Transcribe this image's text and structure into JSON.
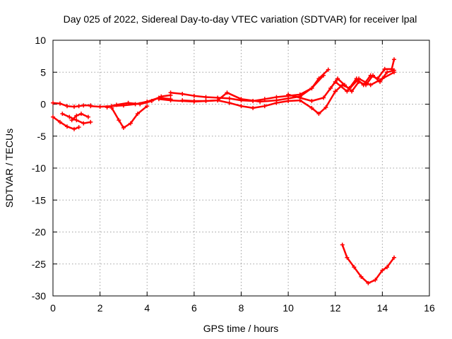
{
  "chart_data": {
    "type": "scatter",
    "title": "Day 025 of 2022, Sidereal Day-to-day VTEC variation (SDTVAR) for receiver lpal",
    "xlabel": "GPS time / hours",
    "ylabel": "SDTVAR / TECUs",
    "xlim": [
      0,
      16
    ],
    "ylim": [
      -30,
      10
    ],
    "xticks": [
      0,
      2,
      4,
      6,
      8,
      10,
      12,
      14,
      16
    ],
    "yticks": [
      -30,
      -25,
      -20,
      -15,
      -10,
      -5,
      0,
      5,
      10
    ],
    "grid": true,
    "marker_color": "#ff0000",
    "series": [
      {
        "x": [
          0,
          0.3,
          0.6,
          0.9,
          1.1,
          1.3,
          1.6
        ],
        "y": [
          0.2,
          0.1,
          -0.3,
          -0.4,
          -0.3,
          -0.2,
          -0.2
        ]
      },
      {
        "x": [
          0,
          0.3,
          0.6,
          0.9,
          1.1
        ],
        "y": [
          -2.0,
          -2.8,
          -3.5,
          -3.9,
          -3.6
        ]
      },
      {
        "x": [
          0.4,
          0.7,
          1.0,
          1.3,
          1.6
        ],
        "y": [
          -1.5,
          -2.0,
          -2.5,
          -3.0,
          -2.8
        ]
      },
      {
        "x": [
          0.8,
          1.0,
          1.2,
          1.5
        ],
        "y": [
          -2.5,
          -1.8,
          -1.5,
          -2.0
        ]
      },
      {
        "x": [
          1.6,
          2.0,
          2.5,
          3.0,
          3.5,
          4.0,
          4.5,
          5.0
        ],
        "y": [
          -0.3,
          -0.4,
          -0.3,
          -0.2,
          0.0,
          0.4,
          1.0,
          0.8
        ]
      },
      {
        "x": [
          2.5,
          2.8,
          3.0,
          3.3,
          3.6,
          4.0
        ],
        "y": [
          -0.6,
          -2.5,
          -3.7,
          -3.0,
          -1.5,
          -0.3
        ]
      },
      {
        "x": [
          2.3,
          2.7,
          3.2,
          3.7,
          4.2,
          4.6,
          5.0
        ],
        "y": [
          -0.5,
          -0.1,
          0.2,
          0.0,
          0.5,
          1.2,
          1.4
        ]
      },
      {
        "x": [
          5.0,
          5.5,
          6.0,
          6.5,
          7.0,
          7.5,
          8.0,
          8.5,
          9.0,
          9.5,
          10.0,
          10.5,
          11.0,
          11.5
        ],
        "y": [
          1.8,
          1.6,
          1.3,
          1.1,
          1.0,
          0.9,
          0.6,
          0.5,
          0.8,
          1.1,
          1.3,
          1.5,
          2.5,
          4.5
        ]
      },
      {
        "x": [
          4.5,
          5.0,
          6.0,
          7.0,
          7.4,
          8.0,
          8.8,
          9.5,
          10.0,
          10.5,
          11.0,
          11.3,
          11.7
        ],
        "y": [
          0.8,
          0.6,
          0.4,
          0.6,
          1.8,
          0.8,
          0.4,
          0.6,
          0.9,
          1.2,
          2.5,
          4.0,
          5.4
        ]
      },
      {
        "x": [
          5.5,
          6.0,
          6.5,
          7.0,
          7.5,
          8.0,
          8.5,
          9.0,
          9.5,
          10.0,
          10.5,
          11.0,
          11.3,
          11.6,
          12.0
        ],
        "y": [
          0.6,
          0.5,
          0.5,
          0.6,
          0.2,
          -0.3,
          -0.6,
          -0.3,
          0.2,
          0.5,
          0.6,
          -0.6,
          -1.5,
          -0.5,
          2.0
        ]
      },
      {
        "x": [
          10.0,
          10.5,
          11.0,
          11.5,
          12.0,
          12.5,
          13.0,
          13.5,
          14.0,
          14.5
        ],
        "y": [
          1.5,
          1.0,
          0.5,
          1.0,
          3.5,
          2.0,
          4.0,
          3.0,
          4.0,
          5.0
        ]
      },
      {
        "x": [
          11.8,
          12.1,
          12.4,
          12.7,
          13.0,
          13.3,
          13.6,
          13.9,
          14.2,
          14.5
        ],
        "y": [
          2.5,
          4.0,
          3.0,
          2.0,
          3.5,
          3.0,
          4.5,
          3.5,
          5.0,
          5.3
        ]
      },
      {
        "x": [
          12.0,
          12.3,
          12.6,
          12.9,
          13.2,
          13.5,
          13.8,
          14.1,
          14.4,
          14.5
        ],
        "y": [
          2.0,
          3.0,
          2.5,
          4.0,
          3.0,
          4.5,
          4.0,
          5.5,
          5.5,
          7.0
        ]
      },
      {
        "x": [
          12.3,
          12.5,
          12.8,
          13.1,
          13.4,
          13.7,
          14.0,
          14.2,
          14.5
        ],
        "y": [
          -22.0,
          -24.0,
          -25.5,
          -27.0,
          -28.0,
          -27.5,
          -26.0,
          -25.5,
          -24.0
        ]
      }
    ]
  }
}
